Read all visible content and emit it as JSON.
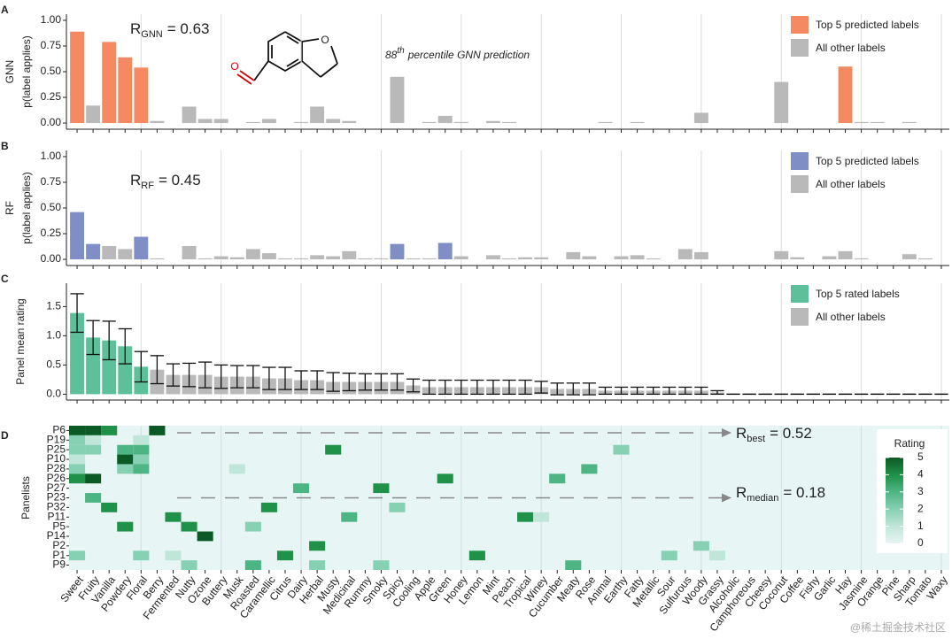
{
  "chart_data": [
    {
      "type": "bar",
      "label": "A",
      "title": "GNN",
      "ylabel": "p(label applies)",
      "ylim": [
        -0.06,
        1.06
      ],
      "yticks": [
        {
          "value": 0,
          "label": "0.00"
        },
        0.25,
        {
          "value": 0.5,
          "label": "0.50"
        },
        0.75,
        {
          "value": 1,
          "label": "1.00"
        }
      ],
      "xgrid_step": 5,
      "series": [
        {
          "name": "Top 5 predicted labels",
          "color": "#f58a62",
          "values": [
            0.89,
            null,
            0.79,
            0.64,
            0.54,
            null,
            null,
            null,
            null,
            null,
            null,
            null,
            null,
            null,
            null,
            null,
            null,
            null,
            null,
            null,
            null,
            null,
            null,
            null,
            null,
            null,
            null,
            null,
            null,
            null,
            null,
            null,
            null,
            null,
            null,
            null,
            null,
            null,
            null,
            null,
            null,
            null,
            null,
            null,
            null,
            null,
            null,
            null,
            0.55,
            null,
            null,
            null,
            null,
            null,
            null
          ]
        },
        {
          "name": "All other labels",
          "color": "#b9b9b9",
          "values": [
            null,
            0.17,
            null,
            null,
            null,
            0.02,
            0,
            0.16,
            0.04,
            0.04,
            0,
            0.01,
            0.04,
            0,
            0.01,
            0.16,
            0.04,
            0.02,
            0,
            0,
            0.45,
            0,
            0.01,
            0.07,
            0.01,
            0,
            0.02,
            0.01,
            0,
            0,
            0,
            0,
            0,
            0.01,
            0,
            0.01,
            0,
            0,
            0,
            0.1,
            0,
            0,
            0,
            0,
            0.4,
            0,
            0,
            0,
            null,
            0.01,
            0.01,
            0,
            0.01,
            0,
            0
          ]
        }
      ],
      "annotations": [
        {
          "symbol": "R",
          "subscript": "GNN",
          "text": "= 0.63"
        },
        {
          "text": "88",
          "superscript": "th",
          "rest": "percentile GNN prediction"
        }
      ]
    },
    {
      "type": "bar",
      "label": "B",
      "title": "RF",
      "ylabel": "p(label applies)",
      "ylim": [
        -0.06,
        1.06
      ],
      "yticks": [
        {
          "value": 0,
          "label": "0.00"
        },
        0.25,
        {
          "value": 0.5,
          "label": "0.50"
        },
        0.75,
        {
          "value": 1,
          "label": "1.00"
        }
      ],
      "xgrid_step": 5,
      "series": [
        {
          "name": "Top 5 predicted labels",
          "color": "#7f8fc6",
          "values": [
            0.46,
            0.15,
            null,
            null,
            0.22,
            null,
            null,
            null,
            null,
            null,
            null,
            null,
            null,
            null,
            null,
            null,
            null,
            null,
            null,
            null,
            0.15,
            null,
            null,
            0.16,
            null,
            null,
            null,
            null,
            null,
            null,
            null,
            null,
            null,
            null,
            null,
            null,
            null,
            null,
            null,
            null,
            null,
            null,
            null,
            null,
            null,
            null,
            null,
            null,
            null,
            null,
            null,
            null,
            null,
            null,
            null
          ]
        },
        {
          "name": "All other labels",
          "color": "#b9b9b9",
          "values": [
            null,
            null,
            0.13,
            0.1,
            null,
            0.01,
            0,
            0.13,
            0.01,
            0.03,
            0.02,
            0.1,
            0.06,
            0.01,
            0.01,
            0.04,
            0.03,
            0.08,
            0.01,
            0.01,
            null,
            0.01,
            0.01,
            null,
            0.03,
            0,
            0.04,
            0.01,
            0.02,
            0.02,
            0,
            0.07,
            0.03,
            0,
            0.03,
            0.04,
            0.01,
            0,
            0.1,
            0.07,
            0,
            0,
            0,
            0,
            0.08,
            0.02,
            0,
            0.03,
            0.08,
            0.01,
            0,
            0,
            0.05,
            0.01,
            0
          ]
        }
      ],
      "annotations": [
        {
          "symbol": "R",
          "subscript": "RF",
          "text": "= 0.45"
        }
      ]
    },
    {
      "type": "bar",
      "label": "C",
      "ylabel": "Panel mean rating",
      "ylim": [
        -0.1,
        1.9
      ],
      "yticks": [
        {
          "value": 0,
          "label": "0.0"
        },
        0.5,
        {
          "value": 1,
          "label": "1.0"
        },
        1.5
      ],
      "xgrid_step": 5,
      "series": [
        {
          "name": "Top 5 rated labels",
          "color": "#5dc09a",
          "values": [
            1.39,
            0.97,
            0.92,
            0.82,
            0.47,
            null,
            null,
            null,
            null,
            null,
            null,
            null,
            null,
            null,
            null,
            null,
            null,
            null,
            null,
            null,
            null,
            null,
            null,
            null,
            null,
            null,
            null,
            null,
            null,
            null,
            null,
            null,
            null,
            null,
            null,
            null,
            null,
            null,
            null,
            null,
            null,
            null,
            null,
            null,
            null,
            null,
            null,
            null,
            null,
            null,
            null,
            null,
            null,
            null,
            null
          ],
          "errors": [
            0.33,
            0.29,
            0.33,
            0.3,
            0.26,
            null,
            null,
            null,
            null,
            null,
            null,
            null,
            null,
            null,
            null,
            null,
            null,
            null,
            null,
            null,
            null,
            null,
            null,
            null,
            null,
            null,
            null,
            null,
            null,
            null,
            null,
            null,
            null,
            null,
            null,
            null,
            null,
            null,
            null,
            null,
            null,
            null,
            null,
            null,
            null,
            null,
            null,
            null,
            null,
            null,
            null,
            null,
            null,
            null,
            null
          ]
        },
        {
          "name": "All other labels",
          "color": "#b9b9b9",
          "values": [
            null,
            null,
            null,
            null,
            null,
            0.42,
            0.33,
            0.33,
            0.33,
            0.3,
            0.3,
            0.3,
            0.27,
            0.27,
            0.24,
            0.24,
            0.21,
            0.21,
            0.21,
            0.21,
            0.21,
            0.15,
            0.12,
            0.12,
            0.12,
            0.12,
            0.12,
            0.12,
            0.12,
            0.12,
            0.09,
            0.09,
            0.09,
            0.06,
            0.06,
            0.06,
            0.06,
            0.06,
            0.06,
            0.06,
            0.03,
            0,
            0,
            0,
            0,
            0,
            0,
            0,
            0,
            0,
            0,
            0,
            0,
            0,
            0
          ],
          "errors": [
            null,
            null,
            null,
            null,
            null,
            0.24,
            0.19,
            0.2,
            0.22,
            0.2,
            0.19,
            0.19,
            0.19,
            0.19,
            0.16,
            0.16,
            0.16,
            0.15,
            0.14,
            0.14,
            0.14,
            0.11,
            0.12,
            0.12,
            0.12,
            0.12,
            0.12,
            0.12,
            0.12,
            0.1,
            0.1,
            0.1,
            0.1,
            0.06,
            0.06,
            0.06,
            0.06,
            0.06,
            0.06,
            0.06,
            0.03,
            0,
            0,
            0,
            0,
            0,
            0,
            0,
            0,
            0,
            0,
            0,
            0,
            0,
            0
          ]
        }
      ]
    },
    {
      "type": "heatmap",
      "label": "D",
      "ylabel": "Panelists",
      "xgrid_step": 5,
      "categories": [
        "Sweet",
        "Fruity",
        "Vanilla",
        "Powdery",
        "Floral",
        "Berry",
        "Fermented",
        "Nutty",
        "Ozone",
        "Buttery",
        "Musk",
        "Roasted",
        "Caramellic",
        "Citrus",
        "Dairy",
        "Herbal",
        "Musty",
        "Medicinal",
        "Rummy",
        "Smoky",
        "Spicy",
        "Cooling",
        "Apple",
        "Green",
        "Honey",
        "Lemon",
        "Mint",
        "Peach",
        "Tropical",
        "Winey",
        "Cucumber",
        "Meaty",
        "Rose",
        "Animal",
        "Earthy",
        "Fatty",
        "Metallic",
        "Sour",
        "Sulfurous",
        "Woody",
        "Grassy",
        "Alcoholic",
        "Camphoreous",
        "Cheesy",
        "Coconut",
        "Coffee",
        "Fishy",
        "Garlic",
        "Hay",
        "Jasmine",
        "Orange",
        "Pine",
        "Sharp",
        "Tomato",
        "Waxy"
      ],
      "rows": [
        "P6",
        "P19",
        "P25",
        "P10",
        "P28",
        "P26",
        "P27",
        "P23",
        "P32",
        "P11",
        "P5",
        "P14",
        "P2",
        "P1",
        "P9"
      ],
      "cells": [
        {
          "row": "P6",
          "label": "Sweet",
          "rating": 5
        },
        {
          "row": "P6",
          "label": "Fruity",
          "rating": 5
        },
        {
          "row": "P6",
          "label": "Vanilla",
          "rating": 4
        },
        {
          "row": "P6",
          "label": "Berry",
          "rating": 5
        },
        {
          "row": "P19",
          "label": "Sweet",
          "rating": 2
        },
        {
          "row": "P19",
          "label": "Fruity",
          "rating": 1
        },
        {
          "row": "P19",
          "label": "Floral",
          "rating": 1
        },
        {
          "row": "P25",
          "label": "Sweet",
          "rating": 2
        },
        {
          "row": "P25",
          "label": "Fruity",
          "rating": 2
        },
        {
          "row": "P25",
          "label": "Powdery",
          "rating": 3
        },
        {
          "row": "P25",
          "label": "Floral",
          "rating": 3
        },
        {
          "row": "P25",
          "label": "Musty",
          "rating": 4
        },
        {
          "row": "P25",
          "label": "Earthy",
          "rating": 2
        },
        {
          "row": "P10",
          "label": "Sweet",
          "rating": 1
        },
        {
          "row": "P10",
          "label": "Powdery",
          "rating": 5
        },
        {
          "row": "P10",
          "label": "Floral",
          "rating": 2
        },
        {
          "row": "P28",
          "label": "Sweet",
          "rating": 2
        },
        {
          "row": "P28",
          "label": "Powdery",
          "rating": 2
        },
        {
          "row": "P28",
          "label": "Floral",
          "rating": 3
        },
        {
          "row": "P28",
          "label": "Musk",
          "rating": 1
        },
        {
          "row": "P28",
          "label": "Rose",
          "rating": 3
        },
        {
          "row": "P26",
          "label": "Sweet",
          "rating": 4
        },
        {
          "row": "P26",
          "label": "Fruity",
          "rating": 5
        },
        {
          "row": "P26",
          "label": "Green",
          "rating": 4
        },
        {
          "row": "P26",
          "label": "Cucumber",
          "rating": 3
        },
        {
          "row": "P27",
          "label": "Dairy",
          "rating": 3
        },
        {
          "row": "P27",
          "label": "Smoky",
          "rating": 4
        },
        {
          "row": "P23",
          "label": "Fruity",
          "rating": 3
        },
        {
          "row": "P32",
          "label": "Vanilla",
          "rating": 4
        },
        {
          "row": "P32",
          "label": "Caramellic",
          "rating": 4
        },
        {
          "row": "P32",
          "label": "Spicy",
          "rating": 2
        },
        {
          "row": "P11",
          "label": "Fermented",
          "rating": 4
        },
        {
          "row": "P11",
          "label": "Medicinal",
          "rating": 3
        },
        {
          "row": "P11",
          "label": "Tropical",
          "rating": 4
        },
        {
          "row": "P11",
          "label": "Winey",
          "rating": 1
        },
        {
          "row": "P5",
          "label": "Powdery",
          "rating": 4
        },
        {
          "row": "P5",
          "label": "Nutty",
          "rating": 4
        },
        {
          "row": "P5",
          "label": "Roasted",
          "rating": 2
        },
        {
          "row": "P14",
          "label": "Ozone",
          "rating": 5
        },
        {
          "row": "P2",
          "label": "Herbal",
          "rating": 4
        },
        {
          "row": "P2",
          "label": "Woody",
          "rating": 2
        },
        {
          "row": "P1",
          "label": "Sweet",
          "rating": 2
        },
        {
          "row": "P1",
          "label": "Floral",
          "rating": 2
        },
        {
          "row": "P1",
          "label": "Fermented",
          "rating": 1
        },
        {
          "row": "P1",
          "label": "Citrus",
          "rating": 4
        },
        {
          "row": "P1",
          "label": "Lemon",
          "rating": 4
        },
        {
          "row": "P1",
          "label": "Sour",
          "rating": 2
        },
        {
          "row": "P1",
          "label": "Grassy",
          "rating": 1
        },
        {
          "row": "P9",
          "label": "Nutty",
          "rating": 2
        },
        {
          "row": "P9",
          "label": "Roasted",
          "rating": 3
        },
        {
          "row": "P9",
          "label": "Herbal",
          "rating": 2
        },
        {
          "row": "P9",
          "label": "Smoky",
          "rating": 2
        },
        {
          "row": "P9",
          "label": "Meaty",
          "rating": 3
        }
      ],
      "zlim": [
        0,
        5
      ],
      "zticks": [
        0,
        1,
        2,
        3,
        4,
        5
      ],
      "colorbar_title": "Rating",
      "colorscale": [
        "#e8f5f5",
        "#bfe6d8",
        "#86d0b3",
        "#4db584",
        "#1f9148",
        "#0b5a26"
      ],
      "annotations": [
        {
          "symbol": "R",
          "subscript": "best",
          "text": "= 0.52"
        },
        {
          "symbol": "R",
          "subscript": "median",
          "text": "= 0.18"
        }
      ]
    }
  ],
  "watermark": "@稀土掘金技术社区"
}
